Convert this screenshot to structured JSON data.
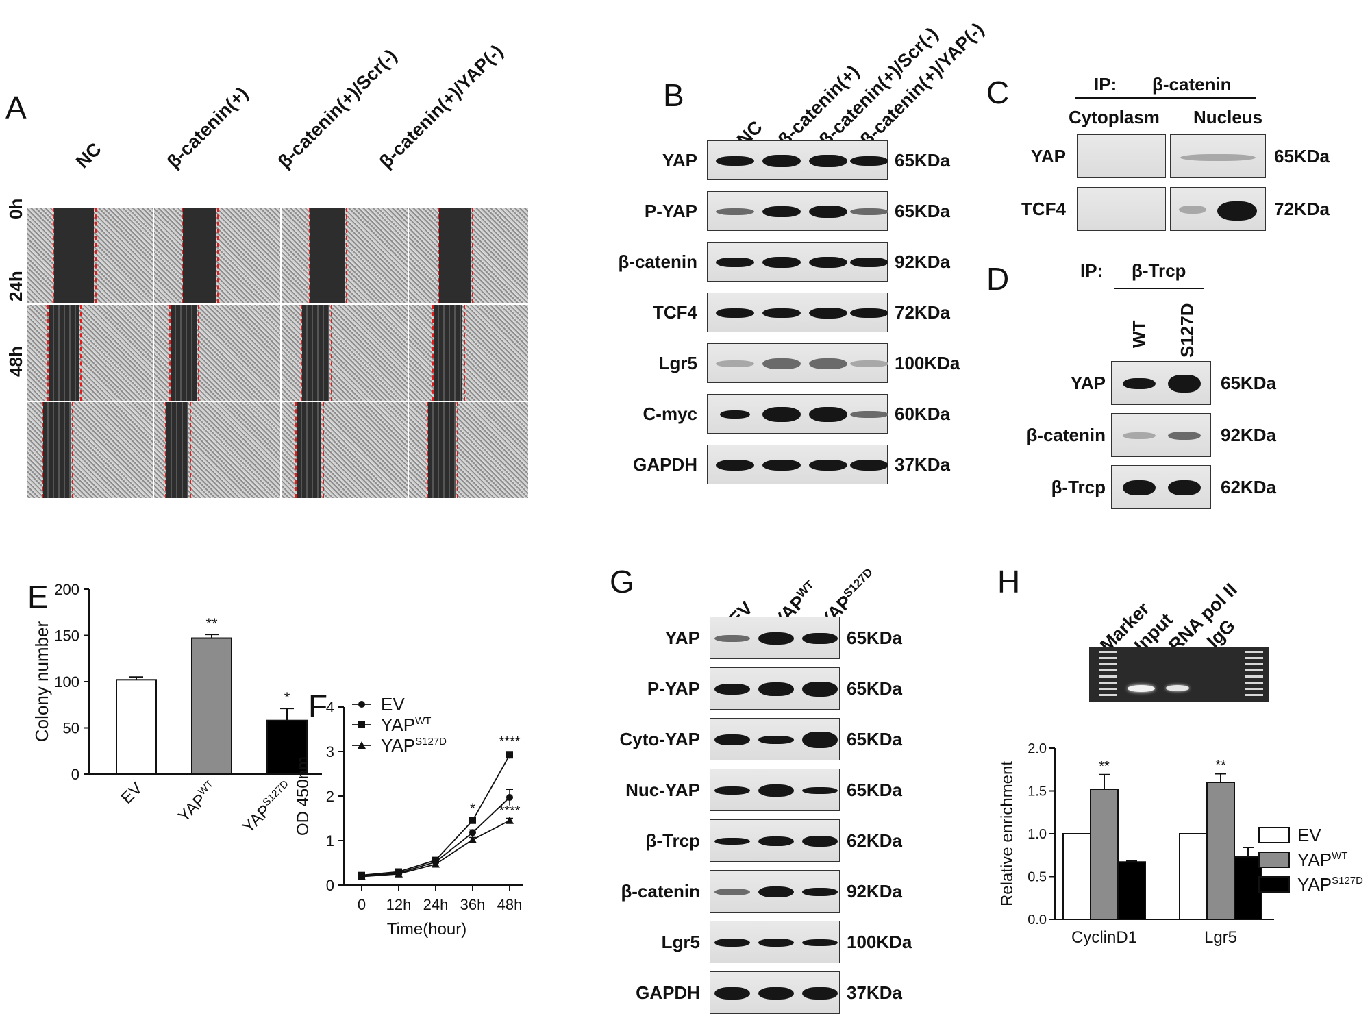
{
  "panels": {
    "A": {
      "label": "A",
      "columns": [
        "NC",
        "β-catenin(+)",
        "β-catenin(+)/Scr(-)",
        "β-catenin(+)/YAP(-)"
      ],
      "rows": [
        "0h",
        "24h",
        "48h"
      ]
    },
    "B": {
      "label": "B",
      "lanes": [
        "NC",
        "β-catenin(+)",
        "β-catenin(+)/Scr(-)",
        "β-catenin(+)/YAP(-)"
      ],
      "rows": [
        {
          "name": "YAP",
          "kda": "65KDa"
        },
        {
          "name": "P-YAP",
          "kda": "65KDa"
        },
        {
          "name": "β-catenin",
          "kda": "92KDa"
        },
        {
          "name": "TCF4",
          "kda": "72KDa"
        },
        {
          "name": "Lgr5",
          "kda": "100KDa"
        },
        {
          "name": "C-myc",
          "kda": "60KDa"
        },
        {
          "name": "GAPDH",
          "kda": "37KDa"
        }
      ]
    },
    "C": {
      "label": "C",
      "ip_label": "IP:",
      "ip_target": "β-catenin",
      "groups": [
        "Cytoplasm",
        "Nucleus"
      ],
      "rows": [
        {
          "name": "YAP",
          "kda": "65KDa"
        },
        {
          "name": "TCF4",
          "kda": "72KDa"
        }
      ]
    },
    "D": {
      "label": "D",
      "ip_label": "IP:",
      "ip_target": "β-Trcp",
      "lanes": [
        "WT",
        "S127D"
      ],
      "rows": [
        {
          "name": "YAP",
          "kda": "65KDa"
        },
        {
          "name": "β-catenin",
          "kda": "92KDa"
        },
        {
          "name": "β-Trcp",
          "kda": "62KDa"
        }
      ]
    },
    "E": {
      "label": "E"
    },
    "F": {
      "label": "F"
    },
    "G": {
      "label": "G",
      "lanes": [
        {
          "base": "EV",
          "sup": ""
        },
        {
          "base": "YAP",
          "sup": "WT"
        },
        {
          "base": "YAP",
          "sup": "S127D"
        }
      ],
      "rows": [
        {
          "name": "YAP",
          "kda": "65KDa"
        },
        {
          "name": "P-YAP",
          "kda": "65KDa"
        },
        {
          "name": "Cyto-YAP",
          "kda": "65KDa"
        },
        {
          "name": "Nuc-YAP",
          "kda": "65KDa"
        },
        {
          "name": "β-Trcp",
          "kda": "62KDa"
        },
        {
          "name": "β-catenin",
          "kda": "92KDa"
        },
        {
          "name": "Lgr5",
          "kda": "100KDa"
        },
        {
          "name": "GAPDH",
          "kda": "37KDa"
        }
      ]
    },
    "H": {
      "label": "H",
      "gel_lanes": [
        "Marker",
        "Input",
        "RNA pol II",
        "IgG"
      ]
    }
  },
  "chart_data": [
    {
      "panel": "E",
      "type": "bar",
      "categories": [
        {
          "base": "EV",
          "sup": ""
        },
        {
          "base": "YAP",
          "sup": "WT"
        },
        {
          "base": "YAP",
          "sup": "S127D"
        }
      ],
      "values": [
        102,
        147,
        58
      ],
      "errors": [
        3,
        4,
        13
      ],
      "significance": [
        "",
        "**",
        "*"
      ],
      "fills": [
        "#ffffff",
        "#8c8c8c",
        "#000000"
      ],
      "ylabel": "Colony number",
      "ylim": [
        0,
        200
      ],
      "yticks": [
        0,
        50,
        100,
        150,
        200
      ]
    },
    {
      "panel": "F",
      "type": "line",
      "x": [
        "0",
        "12h",
        "24h",
        "36h",
        "48h"
      ],
      "xlabel": "Time(hour)",
      "ylabel": "OD 450nm",
      "ylim": [
        0,
        4
      ],
      "yticks": [
        0,
        1,
        2,
        3,
        4
      ],
      "series": [
        {
          "name": "EV",
          "sup": "",
          "marker": "circle",
          "values": [
            0.2,
            0.27,
            0.52,
            1.18,
            1.97
          ],
          "errors": [
            0.03,
            0.03,
            0.04,
            0.06,
            0.18
          ]
        },
        {
          "name": "YAP",
          "sup": "WT",
          "marker": "square",
          "values": [
            0.22,
            0.3,
            0.56,
            1.45,
            2.92
          ],
          "errors": [
            0.03,
            0.03,
            0.04,
            0.05,
            0.08
          ]
        },
        {
          "name": "YAP",
          "sup": "S127D",
          "marker": "triangle",
          "values": [
            0.19,
            0.25,
            0.47,
            1.02,
            1.45
          ],
          "errors": [
            0.03,
            0.03,
            0.04,
            0.05,
            0.05
          ]
        }
      ],
      "annotations": [
        {
          "x": "36h",
          "series": 1,
          "text": "*"
        },
        {
          "x": "48h",
          "series": 1,
          "text": "****"
        },
        {
          "x": "48h",
          "series": 2,
          "text": "****"
        }
      ]
    },
    {
      "panel": "H",
      "type": "bar",
      "categories": [
        "CyclinD1",
        "Lgr5"
      ],
      "series": [
        {
          "name": "EV",
          "sup": "",
          "fill": "#ffffff",
          "values": [
            1.0,
            1.0
          ],
          "errors": [
            0,
            0
          ]
        },
        {
          "name": "YAP",
          "sup": "WT",
          "fill": "#8c8c8c",
          "values": [
            1.52,
            1.6
          ],
          "errors": [
            0.17,
            0.1
          ]
        },
        {
          "name": "YAP",
          "sup": "S127D",
          "fill": "#000000",
          "values": [
            0.67,
            0.73
          ],
          "errors": [
            0.01,
            0.11
          ]
        }
      ],
      "significance": [
        [
          "",
          "**",
          ""
        ],
        [
          "",
          "**",
          ""
        ]
      ],
      "ylabel": "Relative enrichment",
      "ylim": [
        0,
        2.0
      ],
      "yticks": [
        "0.0",
        "0.5",
        "1.0",
        "1.5",
        "2.0"
      ]
    }
  ]
}
